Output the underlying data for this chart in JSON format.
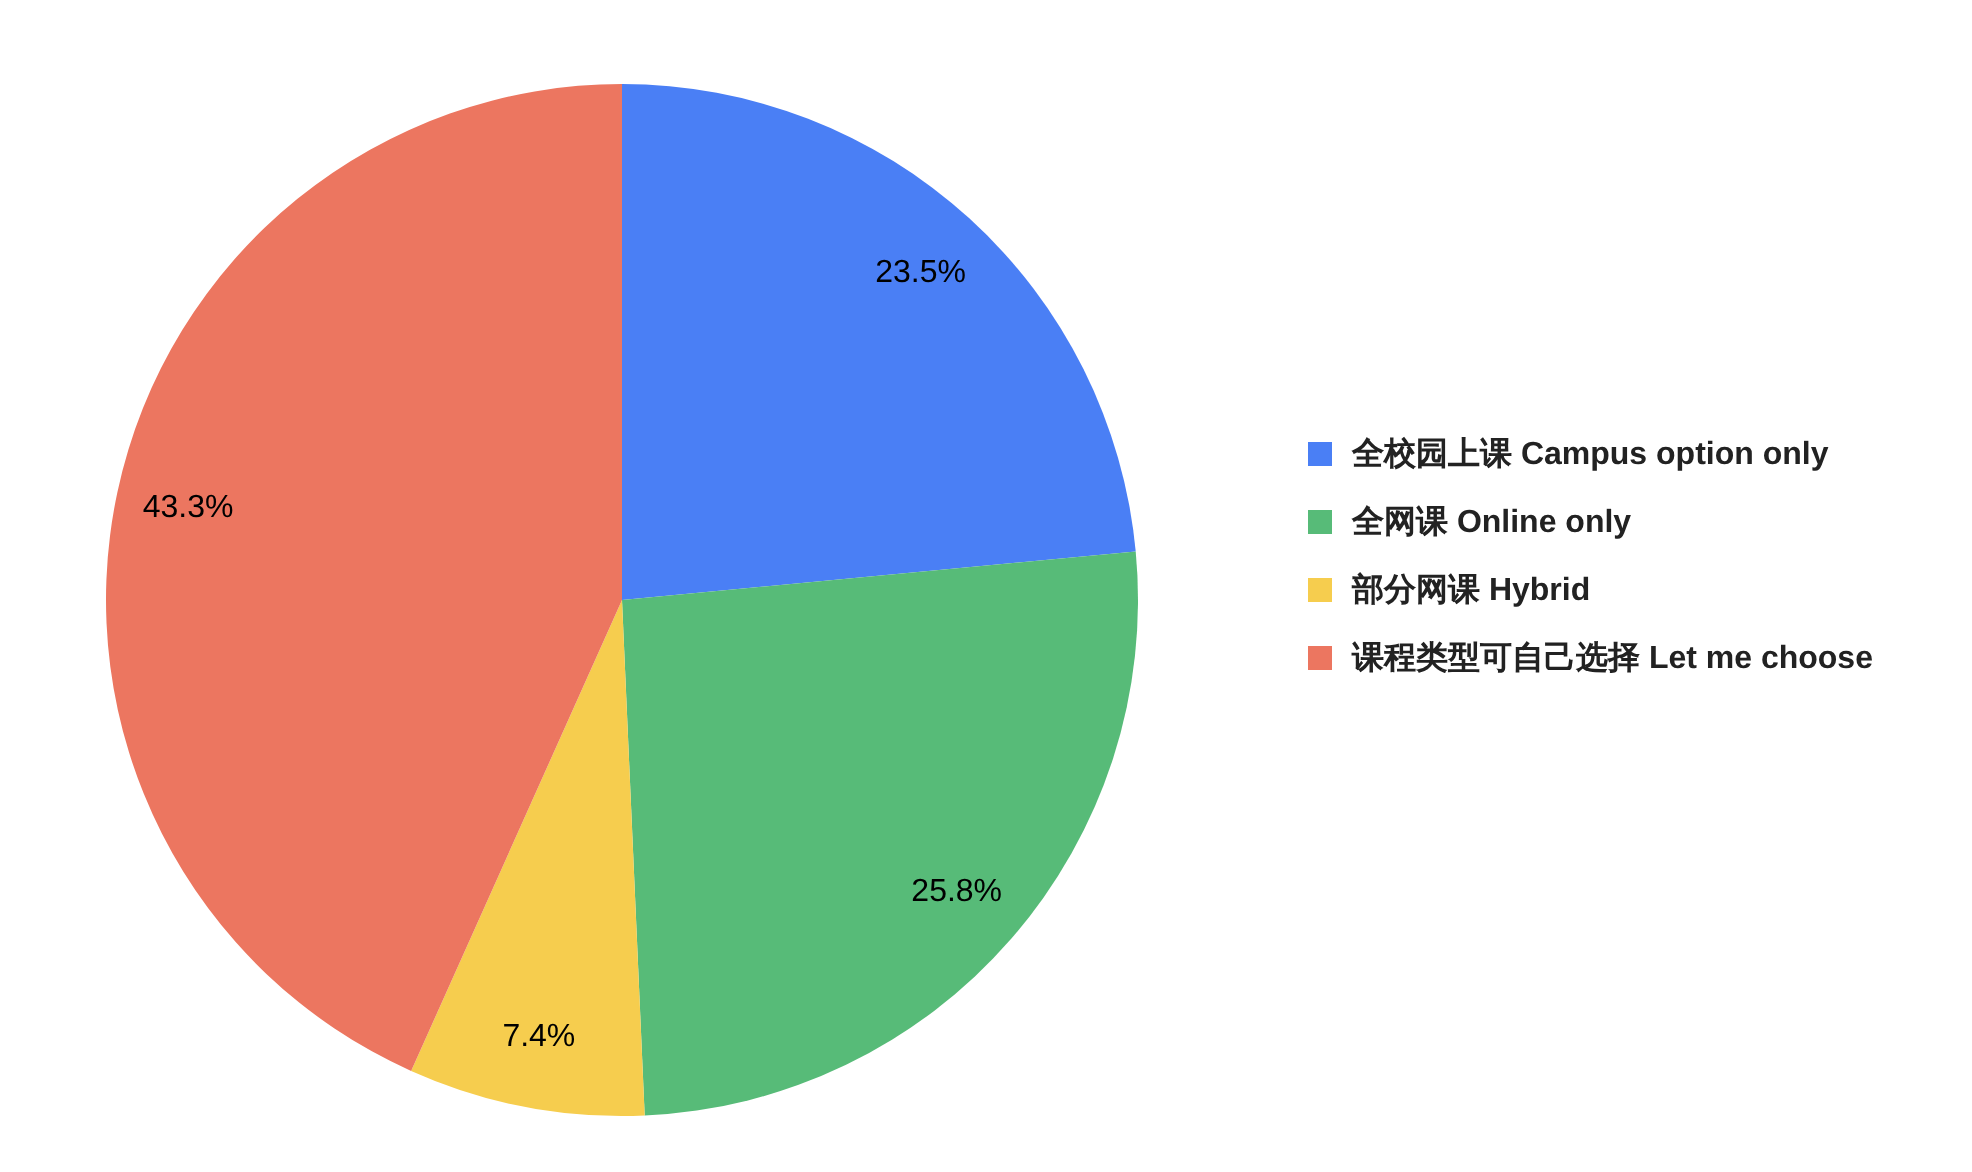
{
  "chart_data": {
    "type": "pie",
    "categories": [
      "全校园上课 Campus option only",
      "全网课  Online only",
      "部分网课 Hybrid",
      "课程类型可自己选择 Let me choose"
    ],
    "values": [
      23.5,
      25.8,
      7.4,
      43.3
    ],
    "colors": [
      "#4a7ff5",
      "#57bb78",
      "#f6cd4e",
      "#ec7660"
    ],
    "value_labels": [
      "23.5%",
      "25.8%",
      "7.4%",
      "43.3%"
    ],
    "legend": "right"
  }
}
